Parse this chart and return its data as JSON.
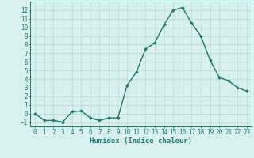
{
  "x": [
    0,
    1,
    2,
    3,
    4,
    5,
    6,
    7,
    8,
    9,
    10,
    11,
    12,
    13,
    14,
    15,
    16,
    17,
    18,
    19,
    20,
    21,
    22,
    23
  ],
  "y": [
    0,
    -0.8,
    -0.8,
    -1,
    0.2,
    0.3,
    -0.5,
    -0.8,
    -0.5,
    -0.5,
    3.3,
    4.8,
    7.5,
    8.2,
    10.3,
    12.0,
    12.3,
    10.5,
    9.0,
    6.2,
    4.2,
    3.8,
    3.0,
    2.6
  ],
  "line_color": "#1a7a6e",
  "marker": "D",
  "marker_size": 1.8,
  "bg_color": "#d9f0f0",
  "grid_color": "#b8d8d8",
  "xlabel": "Humidex (Indice chaleur)",
  "xlim": [
    -0.5,
    23.5
  ],
  "ylim": [
    -1.5,
    13.0
  ],
  "yticks": [
    -1,
    0,
    1,
    2,
    3,
    4,
    5,
    6,
    7,
    8,
    9,
    10,
    11,
    12
  ],
  "xticks": [
    0,
    1,
    2,
    3,
    4,
    5,
    6,
    7,
    8,
    9,
    10,
    11,
    12,
    13,
    14,
    15,
    16,
    17,
    18,
    19,
    20,
    21,
    22,
    23
  ],
  "tick_fontsize": 5.5,
  "label_fontsize": 6.5,
  "linewidth": 1.0
}
